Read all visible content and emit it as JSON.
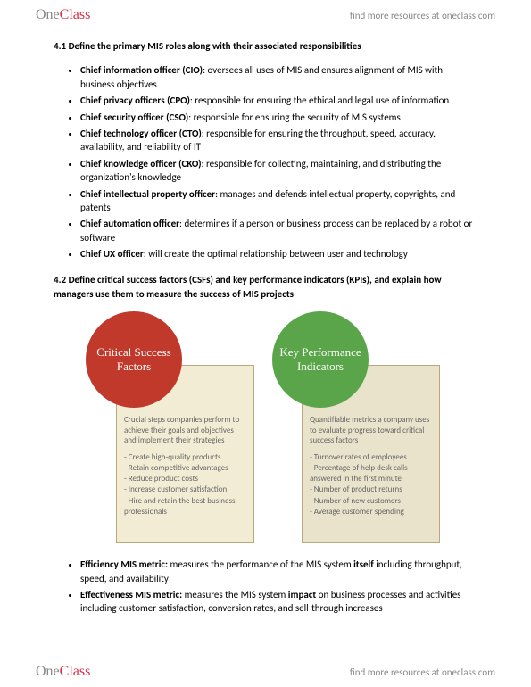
{
  "header": {
    "logo_one": "One",
    "logo_class": "Class",
    "link": "find more resources at oneclass.com"
  },
  "section41": {
    "title": "4.1 Define the primary MIS roles along with their associated responsibilities",
    "items": [
      {
        "term": "Chief information officer (CIO)",
        "desc": ": oversees all uses of MIS and ensures alignment of MIS with business objectives"
      },
      {
        "term": "Chief privacy officers (CPO)",
        "desc": ": responsible for ensuring the ethical and legal use of information"
      },
      {
        "term": "Chief security officer (CSO)",
        "desc": ": responsible for ensuring the security of MIS systems"
      },
      {
        "term": "Chief technology officer (CTO)",
        "desc": ": responsible for ensuring the throughput, speed, accuracy, availability, and reliability of IT"
      },
      {
        "term": "Chief knowledge officer (CKO)",
        "desc": ": responsible for collecting, maintaining, and distributing the organization's knowledge"
      },
      {
        "term": "Chief intellectual property officer",
        "desc": ": manages and defends intellectual property, copyrights, and patents"
      },
      {
        "term": "Chief automation officer",
        "desc": ": determines if a person or business process can be replaced by a robot or software"
      },
      {
        "term": "Chief UX officer",
        "desc": ": will create the optimal relationship between user and technology"
      }
    ]
  },
  "section42": {
    "title": "4.2 Define critical success factors (CSFs) and key performance indicators (KPIs), and explain how managers use them to measure the success of MIS projects",
    "diagram": {
      "red_circle": "Critical Success Factors",
      "green_circle": "Key Performance Indicators",
      "left_box": {
        "intro": "Crucial steps companies perform to achieve their goals and objectives and implement their strategies",
        "items": [
          "Create high-quality products",
          "Retain competitive advantages",
          "Reduce product costs",
          "Increase customer satisfaction",
          "Hire and retain the best business professionals"
        ]
      },
      "right_box": {
        "intro": "Quantifiable metrics a company uses to evaluate progress toward critical success factors",
        "items": [
          "Turnover rates of employees",
          "Percentage of help desk calls answered in the first minute",
          "Number of product returns",
          "Number of new customers",
          "Average customer spending"
        ]
      },
      "colors": {
        "red": "#c0392b",
        "green": "#5aa54a",
        "box_left_bg": "#f3ecd5",
        "box_right_bg": "#eae3cc",
        "box_border": "#b8a87a"
      }
    },
    "metrics": [
      {
        "term": "Efficiency MIS metric:",
        "mid": " measures the performance of the MIS system ",
        "bold2": "itself",
        "tail": " including throughput, speed, and availability"
      },
      {
        "term": "Effectiveness MIS metric:",
        "mid": " measures the MIS system ",
        "bold2": "impact",
        "tail": " on business processes and activities including customer satisfaction, conversion rates, and sell-through increases"
      }
    ]
  }
}
